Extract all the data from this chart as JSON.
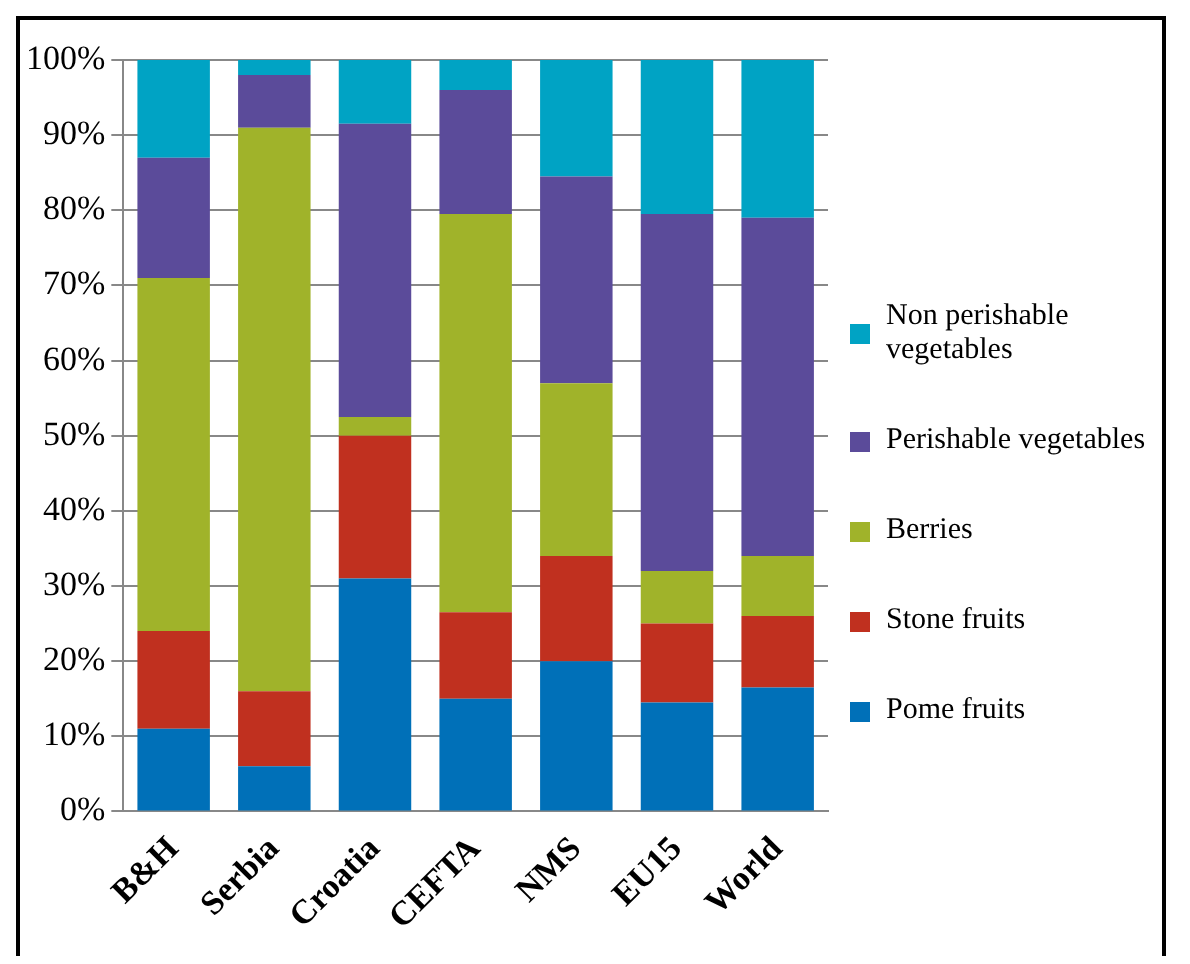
{
  "chart_data": {
    "type": "bar",
    "stacked": true,
    "categories": [
      "B&H",
      "Serbia",
      "Croatia",
      "CEFTA",
      "NMS",
      "EU15",
      "World"
    ],
    "series": [
      {
        "name": "Pome fruits",
        "color": "#0070b8",
        "values": [
          11,
          6,
          31,
          15,
          20,
          14.5,
          16.5
        ]
      },
      {
        "name": "Stone fruits",
        "color": "#c0301f",
        "values": [
          13,
          10,
          19,
          11.5,
          14,
          10.5,
          9.5
        ]
      },
      {
        "name": "Berries",
        "color": "#a0b32a",
        "values": [
          47,
          75,
          2.5,
          53,
          23,
          7,
          8
        ]
      },
      {
        "name": "Perishable vegetables",
        "color": "#5b4b9a",
        "values": [
          16,
          7,
          39,
          16.5,
          27.5,
          47.5,
          45
        ]
      },
      {
        "name": "Non perishable vegetables",
        "color": "#00a3c4",
        "values": [
          13,
          2,
          8.5,
          4,
          15.5,
          20.5,
          21
        ]
      }
    ],
    "ylim": [
      0,
      100
    ],
    "yticks": [
      {
        "value": 0,
        "label": "0%"
      },
      {
        "value": 10,
        "label": "10%"
      },
      {
        "value": 20,
        "label": "20%"
      },
      {
        "value": 30,
        "label": "30%"
      },
      {
        "value": 40,
        "label": "40%"
      },
      {
        "value": 50,
        "label": "50%"
      },
      {
        "value": 60,
        "label": "60%"
      },
      {
        "value": 70,
        "label": "70%"
      },
      {
        "value": 80,
        "label": "80%"
      },
      {
        "value": 90,
        "label": "90%"
      },
      {
        "value": 100,
        "label": "100%"
      }
    ],
    "grid": "y",
    "legend": "right"
  }
}
